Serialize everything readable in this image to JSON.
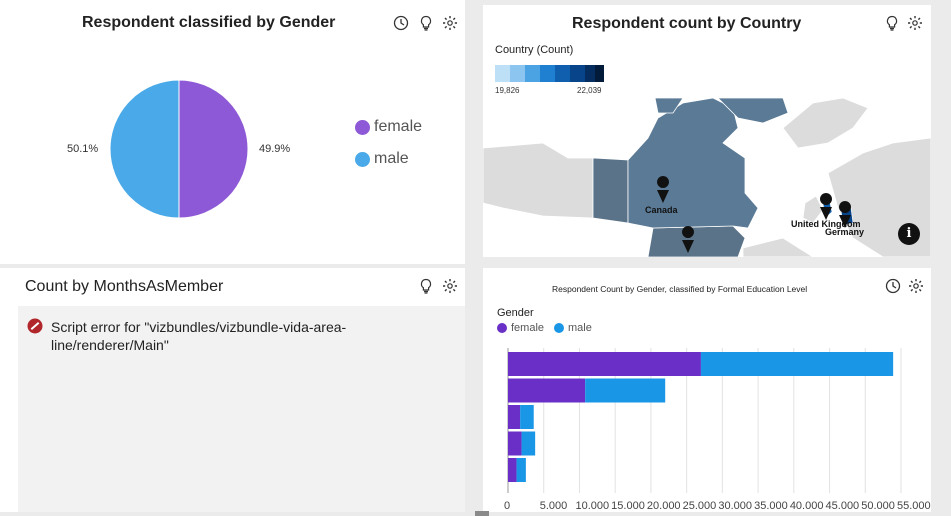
{
  "gender_panel": {
    "title": "Respondent classified by Gender",
    "female_pct": "49.9%",
    "male_pct": "50.1%",
    "legend": [
      {
        "label": "female",
        "color": "#8e59d6"
      },
      {
        "label": "male",
        "color": "#4aa9e8"
      }
    ]
  },
  "country_panel": {
    "title": "Respondent count by Country",
    "legend_title": "Country (Count)",
    "scale_min": "19,826",
    "scale_max": "22,039",
    "scale_colors": [
      "#bde0f7",
      "#8cc5ef",
      "#4ba3e3",
      "#1f7fd1",
      "#0f5fae",
      "#08448a",
      "#052d5f",
      "#031b3a"
    ],
    "labels": {
      "canada": "Canada",
      "uk": "United Kingdom",
      "germany": "Germany"
    }
  },
  "months_panel": {
    "title": "Count by MonthsAsMember",
    "error": "Script error for \"vizbundles/vizbundle-vida-area-line/renderer/Main\""
  },
  "education_panel": {
    "title": "Respondent Count by Gender, classified by Formal Education Level",
    "legend_title": "Gender",
    "legend": [
      {
        "label": "female",
        "color": "#6a2fc6"
      },
      {
        "label": "male",
        "color": "#1a96e6"
      }
    ],
    "x_ticks": [
      "0",
      "5.000",
      "10.000",
      "15.000",
      "20.000",
      "25.000",
      "30.000",
      "35.000",
      "40.000",
      "45.000",
      "50.000",
      "55.000"
    ]
  },
  "chart_data": [
    {
      "type": "pie",
      "title": "Respondent classified by Gender",
      "categories": [
        "female",
        "male"
      ],
      "values": [
        49.9,
        50.1
      ]
    },
    {
      "type": "bar",
      "title": "Respondent Count by Gender, classified by Formal Education Level",
      "legend_title": "Gender",
      "orientation": "horizontal",
      "stacked": true,
      "xlim": [
        0,
        55000
      ],
      "series": [
        {
          "name": "female",
          "values": [
            27000,
            10800,
            1700,
            1900,
            1200
          ]
        },
        {
          "name": "male",
          "values": [
            26900,
            11200,
            1900,
            1900,
            1300
          ]
        }
      ]
    }
  ]
}
